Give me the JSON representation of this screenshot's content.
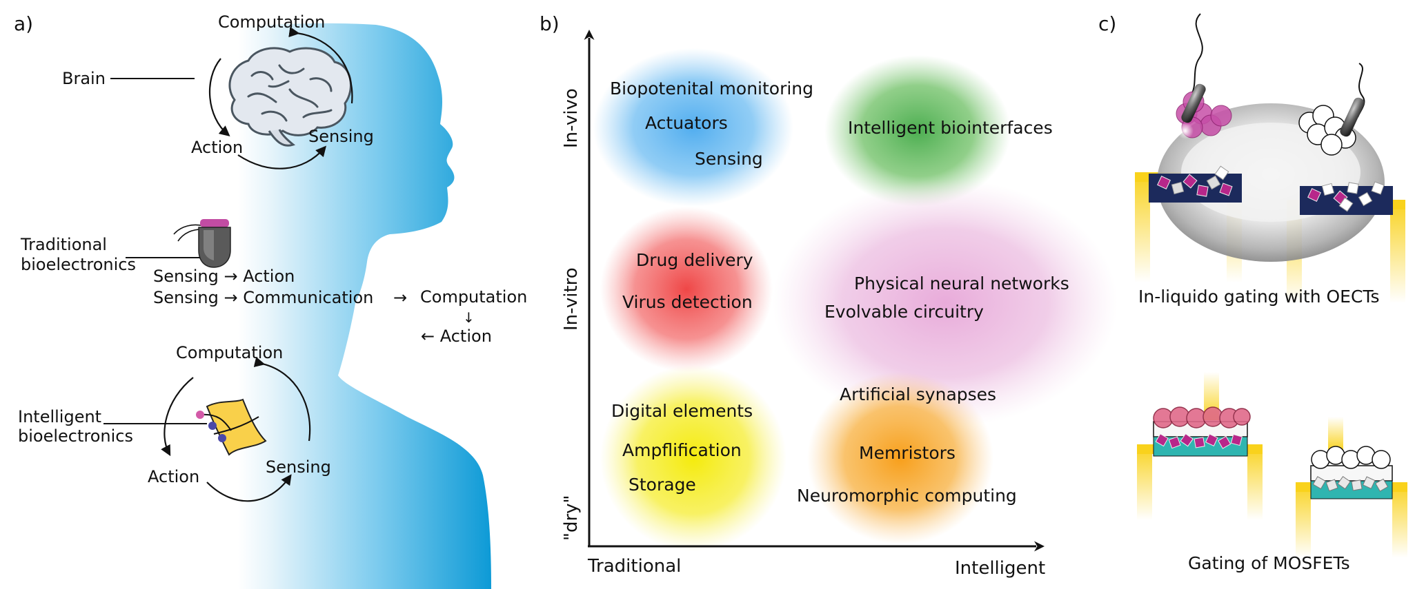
{
  "panels": {
    "a": {
      "label": "a)",
      "brain": {
        "label": "Brain",
        "cycle": {
          "top": "Computation",
          "left": "Action",
          "right": "Sensing"
        }
      },
      "traditional": {
        "label_line1": "Traditional",
        "label_line2": "bioelectronics",
        "line1": "Sensing → Action",
        "line2": "Sensing → Communication",
        "arrow": "→",
        "computation": "Computation",
        "down_arrow": "↓",
        "action": "← Action"
      },
      "intelligent": {
        "label_line1": "Intelligent",
        "label_line2": "bioelectronics",
        "cycle": {
          "top": "Computation",
          "left": "Action",
          "right": "Sensing"
        }
      }
    },
    "b": {
      "label": "b)",
      "y_levels": [
        "In-vivo",
        "In-vitro",
        "\"dry\""
      ],
      "x_levels": [
        "Traditional",
        "Intelligent"
      ],
      "regions": [
        {
          "color": "#4fb0ef",
          "items": [
            "Biopotenital monitoring",
            "Actuators",
            "Sensing"
          ]
        },
        {
          "color": "#4caf50",
          "items": [
            "Intelligent biointerfaces"
          ]
        },
        {
          "color": "#f05454",
          "items": [
            "Drug delivery",
            "Virus detection"
          ]
        },
        {
          "color": "#e8a9d8",
          "items": [
            "Physical neural networks",
            "Evolvable circuitry"
          ]
        },
        {
          "color": "#f6ec1a",
          "items": [
            "Digital elements",
            "Ampflification",
            "Storage"
          ]
        },
        {
          "color": "#f7a11d",
          "items": [
            "Artificial synapses",
            "Memristors",
            "Neuromorphic computing"
          ]
        }
      ]
    },
    "c": {
      "label": "c)",
      "top_caption": "In-liquido gating with OECTs",
      "bottom_caption": "Gating of MOSFETs"
    }
  },
  "colors": {
    "head": "#1ba3dc",
    "magenta": "#b7278a",
    "navy": "#1c2a5c",
    "teal": "#2fb5b0",
    "yellow": "#f9d21c",
    "purple_dot": "#4b49a8",
    "pink_dot": "#d35aa8"
  }
}
